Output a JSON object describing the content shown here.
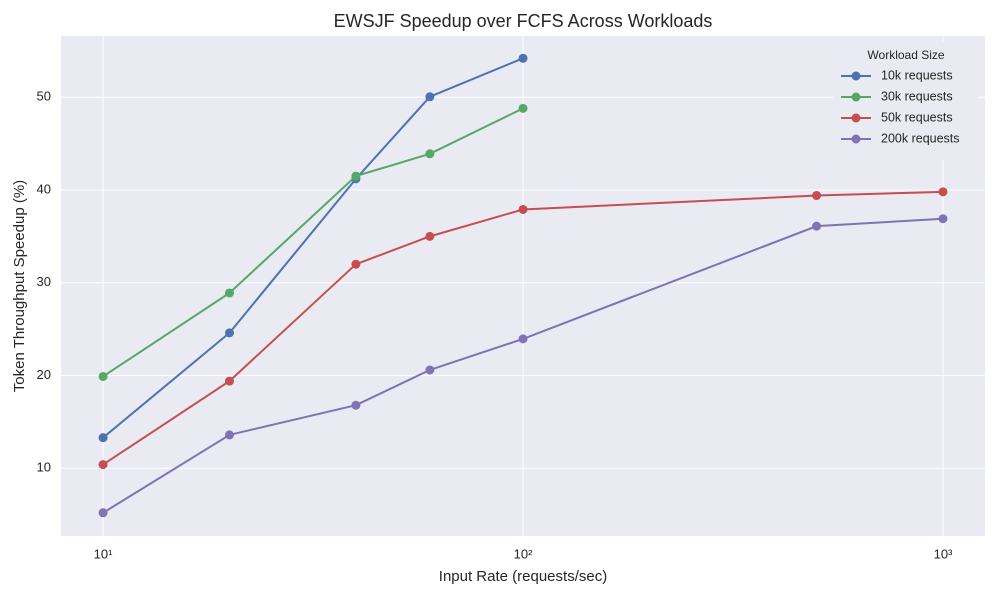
{
  "chart_data": {
    "type": "line",
    "title": "EWSJF Speedup over FCFS Across Workloads",
    "x_label": "Input Rate (requests/sec)",
    "y_label": "Token Throughput Speedup (%)",
    "xscale": "log",
    "xlim": [
      7.94,
      1259
    ],
    "ylim": [
      2.7,
      56.6
    ],
    "xticks": [
      {
        "value": 10,
        "label": "10¹"
      },
      {
        "value": 100,
        "label": "10²"
      },
      {
        "value": 1000,
        "label": "10³"
      }
    ],
    "yticks": [
      10,
      20,
      30,
      40,
      50
    ],
    "grid": true,
    "legend_title": "Workload Size",
    "legend_position": "upper-right",
    "series": [
      {
        "name": "10k requests",
        "color": "#4c72b0",
        "x": [
          10,
          20,
          40,
          60,
          100
        ],
        "values": [
          13.3,
          24.6,
          41.2,
          50.05,
          54.2
        ]
      },
      {
        "name": "30k requests",
        "color": "#55a868",
        "x": [
          10,
          20,
          40,
          60,
          100
        ],
        "values": [
          19.9,
          28.9,
          41.5,
          43.9,
          48.8
        ]
      },
      {
        "name": "50k requests",
        "color": "#c44e52",
        "x": [
          10,
          20,
          40,
          60,
          100,
          500,
          1000
        ],
        "values": [
          10.4,
          19.4,
          32.0,
          35.0,
          37.9,
          39.4,
          39.8
        ]
      },
      {
        "name": "200k requests",
        "color": "#8172b3",
        "x": [
          10,
          20,
          40,
          60,
          100,
          500,
          1000
        ],
        "values": [
          5.2,
          13.6,
          16.8,
          20.6,
          23.95,
          36.1,
          36.9
        ]
      }
    ]
  }
}
